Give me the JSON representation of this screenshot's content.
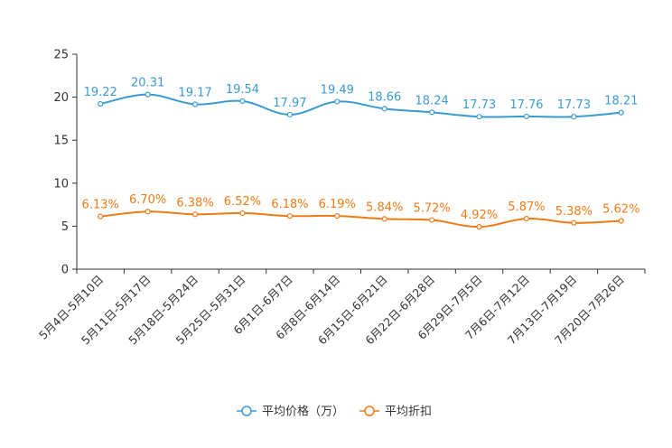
{
  "chart_data": {
    "type": "line",
    "title": "",
    "xlabel": "",
    "ylabel": "",
    "ylim": [
      0,
      25
    ],
    "yticks": [
      "0",
      "5",
      "10",
      "15",
      "20",
      "25"
    ],
    "categories": [
      "5月4日-5月10日",
      "5月11日-5月17日",
      "5月18日-5月24日",
      "5月25日-5月31日",
      "6月1日-6月7日",
      "6月8日-6月14日",
      "6月15日-6月21日",
      "6月22日-6月28日",
      "6月29日-7月5日",
      "7月6日-7月12日",
      "7月13日-7月19日",
      "7月20日-7月26日"
    ],
    "legend_position": "bottom-center",
    "grid": false,
    "series": [
      {
        "name": "平均价格（万）",
        "color": "#3a9bd0",
        "values": [
          19.22,
          20.31,
          19.17,
          19.54,
          17.97,
          19.49,
          18.66,
          18.24,
          17.73,
          17.76,
          17.73,
          18.21
        ],
        "labels": [
          "19.22",
          "20.31",
          "19.17",
          "19.54",
          "17.97",
          "19.49",
          "18.66",
          "18.24",
          "17.73",
          "17.76",
          "17.73",
          "18.21"
        ]
      },
      {
        "name": "平均折扣",
        "color": "#f07b16",
        "values": [
          6.13,
          6.7,
          6.38,
          6.52,
          6.18,
          6.19,
          5.84,
          5.72,
          4.92,
          5.87,
          5.38,
          5.62
        ],
        "labels": [
          "6.13%",
          "6.70%",
          "6.38%",
          "6.52%",
          "6.18%",
          "6.19%",
          "5.84%",
          "5.72%",
          "4.92%",
          "5.87%",
          "5.38%",
          "5.62%"
        ]
      }
    ]
  }
}
